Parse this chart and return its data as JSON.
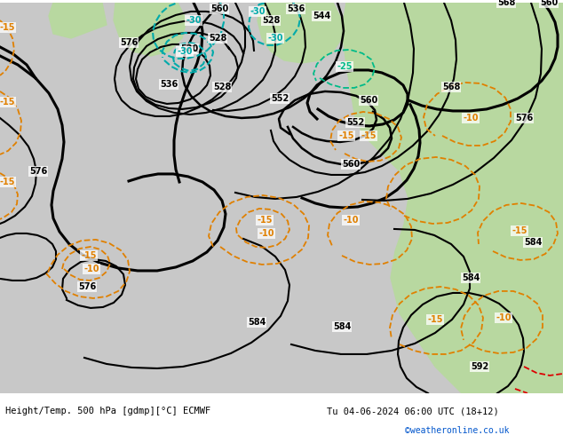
{
  "title_left": "Height/Temp. 500 hPa [gdmp][°C] ECMWF",
  "title_right": "Tu 04-06-2024 06:00 UTC (18+12)",
  "credit": "©weatheronline.co.uk",
  "fig_width": 6.34,
  "fig_height": 4.9,
  "dpi": 100,
  "bg_gray": "#c8c8c8",
  "bg_green": "#b8d8a0",
  "black": "#000000",
  "orange": "#e08000",
  "cyan": "#00aaaa",
  "red": "#dd0000"
}
